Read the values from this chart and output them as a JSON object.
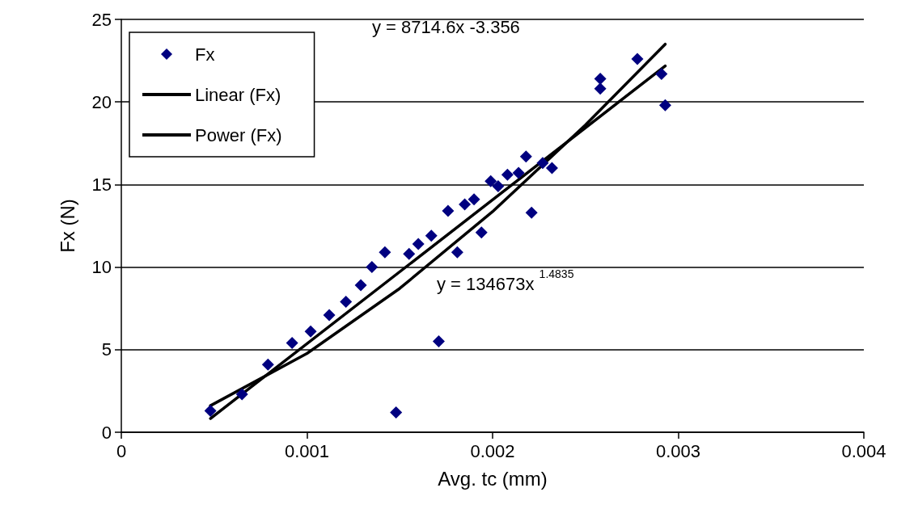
{
  "chart_data": {
    "type": "scatter",
    "xlabel": "Avg. tc (mm)",
    "ylabel": "Fx (N)",
    "xlim": [
      0,
      0.004
    ],
    "xticks": [
      0,
      0.001,
      0.002,
      0.003,
      0.004
    ],
    "ylim": [
      0,
      25
    ],
    "yticks": [
      0,
      5,
      10,
      15,
      20,
      25
    ],
    "grid": "y",
    "legend": "top left",
    "marker": "diamond",
    "series": [
      {
        "name": "Fx",
        "color": "#000080",
        "x": [
          0.00048,
          0.00065,
          0.00079,
          0.00092,
          0.00102,
          0.00112,
          0.00121,
          0.00129,
          0.00135,
          0.00142,
          0.00148,
          0.00155,
          0.0016,
          0.00167,
          0.00176,
          0.00181,
          0.00171,
          0.00185,
          0.0019,
          0.00194,
          0.00199,
          0.00203,
          0.00208,
          0.00214,
          0.00218,
          0.00221,
          0.00227,
          0.00232,
          0.00258,
          0.00258,
          0.00278,
          0.00291,
          0.00293
        ],
        "values": [
          1.3,
          2.3,
          4.1,
          5.4,
          6.1,
          7.1,
          7.9,
          8.9,
          10,
          10.9,
          1.2,
          10.8,
          11.4,
          11.9,
          13.4,
          10.9,
          5.5,
          13.8,
          14.1,
          12.1,
          15.2,
          14.9,
          15.6,
          15.7,
          16.7,
          13.3,
          16.3,
          16,
          21.4,
          20.8,
          22.6,
          21.7,
          19.8
        ]
      },
      {
        "name": "Linear (Fx)",
        "type": "line",
        "color": "#000000",
        "marker": "none",
        "x": [
          0.00048,
          0.00293
        ],
        "values": [
          0.83,
          22.18
        ]
      },
      {
        "name": "Power (Fx)",
        "type": "line",
        "color": "#000000",
        "marker": "none",
        "x": [
          0.00048,
          0.001,
          0.0015,
          0.002,
          0.0025,
          0.00293
        ],
        "values": [
          1.61,
          4.77,
          8.71,
          13.36,
          18.6,
          23.5
        ]
      }
    ],
    "annotations": [
      "y = 8714.6x -3.356",
      "y = 134673x $^{1.4835}$"
    ]
  }
}
